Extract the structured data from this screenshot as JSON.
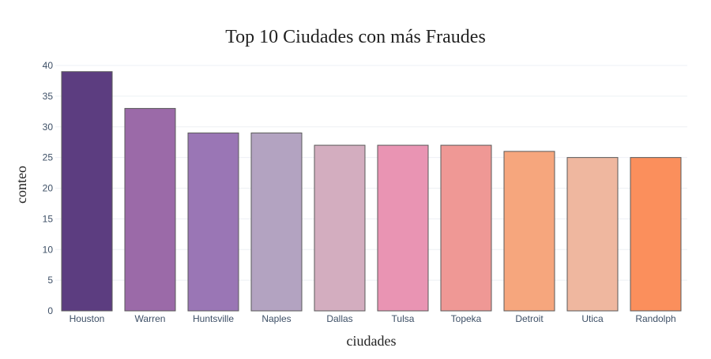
{
  "chart_data": {
    "type": "bar",
    "title": "Top 10 Ciudades con más Fraudes",
    "xlabel": "ciudades",
    "ylabel": "conteo",
    "categories": [
      "Houston",
      "Warren",
      "Huntsville",
      "Naples",
      "Dallas",
      "Tulsa",
      "Topeka",
      "Detroit",
      "Utica",
      "Randolph"
    ],
    "values": [
      39,
      33,
      29,
      29,
      27,
      27,
      27,
      26,
      25,
      25
    ],
    "colors": [
      "#5c3d80",
      "#9b6aa8",
      "#9a76b5",
      "#b3a3c1",
      "#d3adbf",
      "#e994b3",
      "#ef9895",
      "#f6a67d",
      "#efb79f",
      "#fb8f5c"
    ],
    "ylim": [
      0,
      40
    ],
    "yticks": [
      0,
      5,
      10,
      15,
      20,
      25,
      30,
      35,
      40
    ],
    "grid": true,
    "legend": false
  }
}
